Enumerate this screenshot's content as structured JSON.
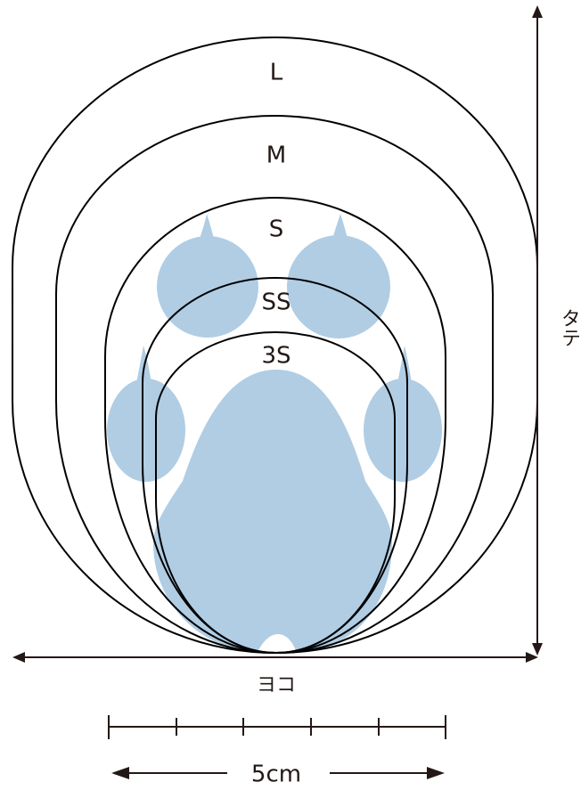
{
  "sizes": [
    "L",
    "M",
    "S",
    "SS",
    "3S"
  ],
  "height_label": "タテ",
  "width_label": "ヨコ",
  "scale_label": "5cm"
}
